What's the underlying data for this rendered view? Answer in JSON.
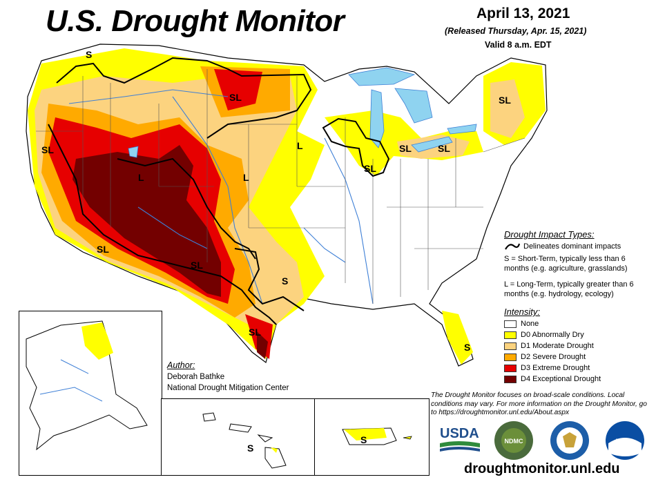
{
  "header": {
    "title": "U.S. Drought Monitor",
    "date": "April 13, 2021",
    "released": "(Released Thursday, Apr. 15, 2021)",
    "valid": "Valid 8 a.m. EDT"
  },
  "map_labels": [
    {
      "text": "S",
      "region": "Montana northwest"
    },
    {
      "text": "SL",
      "region": "North Dakota"
    },
    {
      "text": "SL",
      "region": "California north"
    },
    {
      "text": "L",
      "region": "Utah"
    },
    {
      "text": "L",
      "region": "Nebraska south"
    },
    {
      "text": "L",
      "region": "Minnesota"
    },
    {
      "text": "SL",
      "region": "Wisconsin"
    },
    {
      "text": "SL",
      "region": "Michigan"
    },
    {
      "text": "SL",
      "region": "New York"
    },
    {
      "text": "SL",
      "region": "Maine"
    },
    {
      "text": "SL",
      "region": "Arizona"
    },
    {
      "text": "SL",
      "region": "New Mexico / West Texas"
    },
    {
      "text": "S",
      "region": "Texas east"
    },
    {
      "text": "SL",
      "region": "South Texas"
    },
    {
      "text": "S",
      "region": "Florida"
    },
    {
      "text": "S",
      "region": "Hawaii"
    },
    {
      "text": "S",
      "region": "Puerto Rico"
    }
  ],
  "impact_legend": {
    "heading": "Drought Impact Types:",
    "delineates": "Delineates dominant impacts",
    "short_term": "S = Short-Term, typically less than 6 months (e.g. agriculture, grasslands)",
    "long_term": "L = Long-Term, typically greater than 6 months (e.g. hydrology, ecology)"
  },
  "intensity_legend": {
    "heading": "Intensity:",
    "items": [
      {
        "label": "None",
        "color": "#ffffff"
      },
      {
        "label": "D0 Abnormally Dry",
        "color": "#ffff00"
      },
      {
        "label": "D1 Moderate Drought",
        "color": "#fcd37f"
      },
      {
        "label": "D2 Severe Drought",
        "color": "#ffaa00"
      },
      {
        "label": "D3 Extreme Drought",
        "color": "#e60000"
      },
      {
        "label": "D4 Exceptional Drought",
        "color": "#730000"
      }
    ]
  },
  "author": {
    "heading": "Author:",
    "name": "Deborah Bathke",
    "org": "National Drought Mitigation Center"
  },
  "disclaimer": "The Drought Monitor focuses on broad-scale conditions. Local conditions may vary. For more information on the Drought Monitor, go to https://droughtmonitor.unl.edu/About.aspx",
  "logos": {
    "usda": "USDA",
    "ndmc": "NDMC",
    "noaa": "NOAA"
  },
  "footer_url": "droughtmonitor.unl.edu",
  "colors": {
    "water": "#8fd3f0",
    "boundary": "#000000",
    "rivers": "#3d7fd6"
  }
}
